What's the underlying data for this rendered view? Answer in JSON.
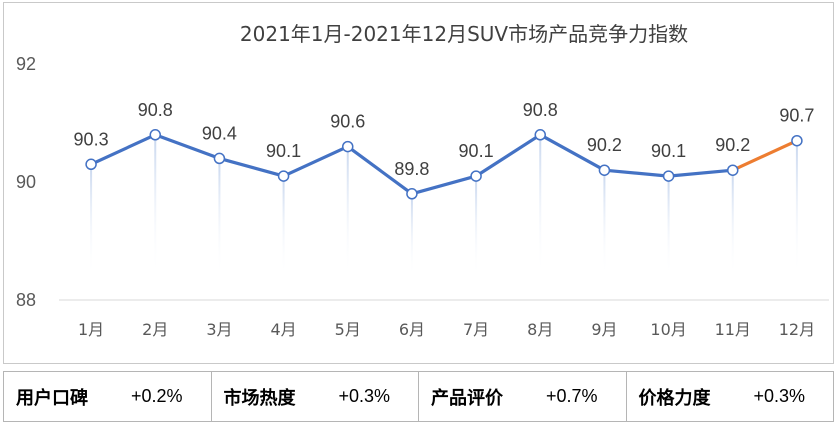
{
  "chart_data": {
    "type": "line",
    "title": "2021年1月-2021年12月SUV市场产品竞争力指数",
    "categories": [
      "1月",
      "2月",
      "3月",
      "4月",
      "5月",
      "6月",
      "7月",
      "8月",
      "9月",
      "10月",
      "11月",
      "12月"
    ],
    "values": [
      90.3,
      90.8,
      90.4,
      90.1,
      90.6,
      89.8,
      90.1,
      90.8,
      90.2,
      90.1,
      90.2,
      90.7
    ],
    "data_labels": [
      "90.3",
      "90.8",
      "90.4",
      "90.1",
      "90.6",
      "89.8",
      "90.1",
      "90.8",
      "90.2",
      "90.1",
      "90.2",
      "90.7"
    ],
    "ylim": [
      88,
      92
    ],
    "yticks": [
      88,
      90,
      92
    ],
    "ytick_labels": [
      "88",
      "90",
      "92"
    ],
    "xlabel": "",
    "ylabel": "",
    "line_color": "#4472C4",
    "highlight_color": "#ED7D31",
    "highlight_segment": [
      10,
      11
    ],
    "grid": false
  },
  "footer": {
    "items": [
      {
        "label": "用户口碑",
        "value": "+0.2%"
      },
      {
        "label": "市场热度",
        "value": "+0.3%"
      },
      {
        "label": "产品评价",
        "value": "+0.7%"
      },
      {
        "label": "价格力度",
        "value": "+0.3%"
      }
    ]
  }
}
